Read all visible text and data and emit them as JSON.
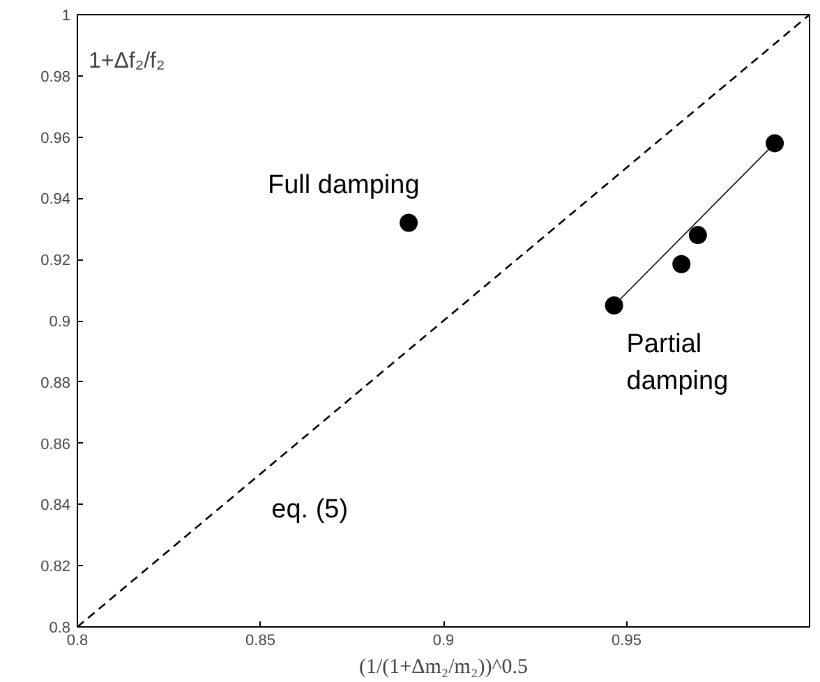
{
  "chart_data": {
    "type": "scatter",
    "xlabel": "(1/(1+Δm₂/m₂))^0.5",
    "ylabel": "1+Δf₂/f₂",
    "xlim": [
      0.8,
      1
    ],
    "ylim": [
      0.8,
      1
    ],
    "xticks": [
      0.8,
      0.85,
      0.9,
      0.95
    ],
    "yticks": [
      0.8,
      0.82,
      0.84,
      0.86,
      0.88,
      0.9,
      0.92,
      0.94,
      0.96,
      0.98,
      1
    ],
    "grid": false,
    "marker": "circle",
    "series": [
      {
        "type": "line",
        "color": "#000000",
        "line_style": "dashed",
        "marker": "none",
        "x": [
          0.8,
          1
        ],
        "values": [
          0.8,
          1
        ]
      },
      {
        "color": "#000000",
        "x": [
          0.8905,
          0.9466,
          0.965,
          0.9695,
          0.9905
        ],
        "values": [
          0.932,
          0.905,
          0.9185,
          0.928,
          0.958
        ]
      },
      {
        "type": "line",
        "color": "#000000",
        "line_style": "solid",
        "marker": "none",
        "x": [
          0.9466,
          0.9905
        ],
        "values": [
          0.905,
          0.958
        ]
      }
    ],
    "annotations": [
      "Full damping",
      "Partial\ndamping",
      "eq. (5)"
    ]
  }
}
